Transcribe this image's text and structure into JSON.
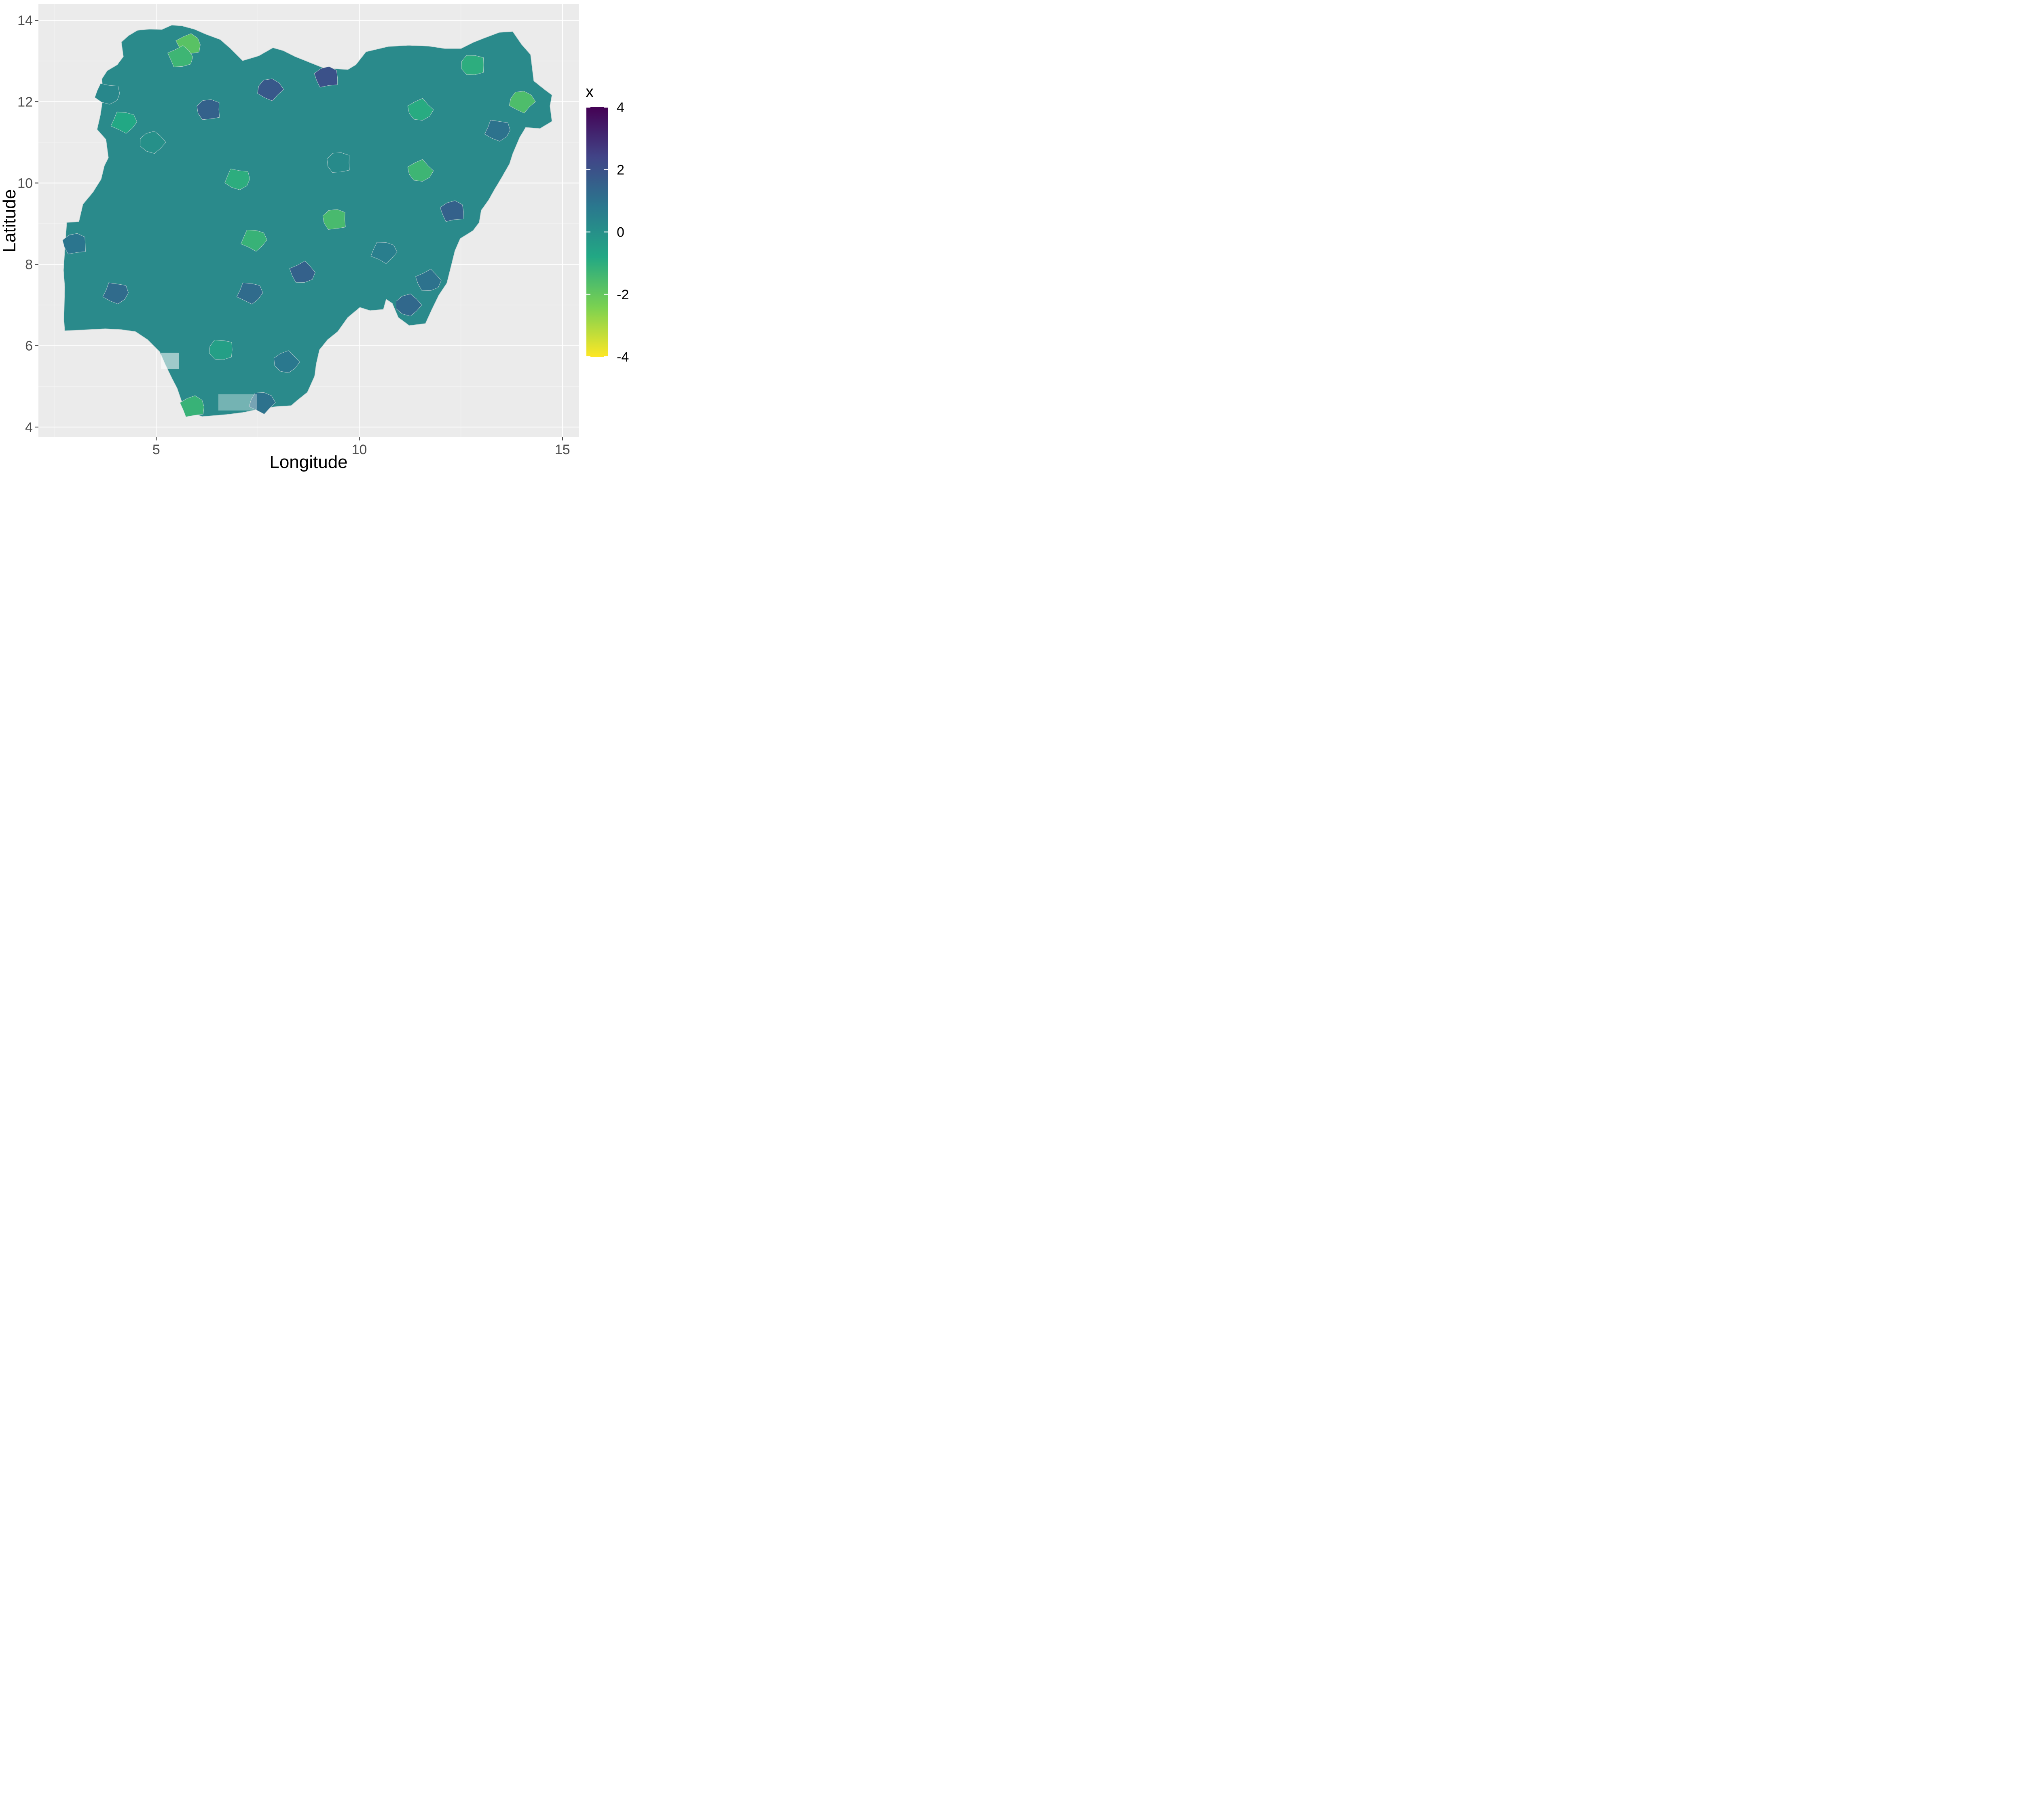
{
  "chart_data": {
    "type": "choropleth",
    "region": "Nigeria",
    "xlabel": "Longitude",
    "ylabel": "Latitude",
    "xlim": [
      2.1,
      15.4
    ],
    "ylim": [
      3.75,
      14.4
    ],
    "x_ticks": [
      5,
      10,
      15
    ],
    "y_ticks": [
      4,
      6,
      8,
      10,
      12,
      14
    ],
    "grid": true,
    "legend": {
      "title": "x",
      "position": "right",
      "min": -4,
      "max": 4,
      "ticks": [
        4,
        2,
        0,
        -2,
        -4
      ],
      "colormap": [
        "#fde725",
        "#7ad151",
        "#22a884",
        "#2a788e",
        "#414487",
        "#440154"
      ]
    },
    "regions": [
      {
        "lon": 4.2,
        "lat": 11.5,
        "value": -0.8
      },
      {
        "lon": 5.8,
        "lat": 13.4,
        "value": -1.8
      },
      {
        "lon": 5.6,
        "lat": 13.1,
        "value": -1.3
      },
      {
        "lon": 7.0,
        "lat": 10.1,
        "value": -1.0
      },
      {
        "lon": 7.4,
        "lat": 8.6,
        "value": -1.2
      },
      {
        "lon": 8.6,
        "lat": 7.8,
        "value": 1.5
      },
      {
        "lon": 6.3,
        "lat": 11.8,
        "value": 1.5
      },
      {
        "lon": 7.8,
        "lat": 12.3,
        "value": 1.8
      },
      {
        "lon": 9.2,
        "lat": 12.6,
        "value": 2.0
      },
      {
        "lon": 11.5,
        "lat": 11.8,
        "value": -0.9
      },
      {
        "lon": 12.8,
        "lat": 12.9,
        "value": -1.0
      },
      {
        "lon": 14.0,
        "lat": 12.0,
        "value": -1.6
      },
      {
        "lon": 11.2,
        "lat": 7.0,
        "value": 1.3
      },
      {
        "lon": 11.7,
        "lat": 7.6,
        "value": 1.0
      },
      {
        "lon": 12.3,
        "lat": 9.3,
        "value": 1.5
      },
      {
        "lon": 13.4,
        "lat": 11.3,
        "value": 1.0
      },
      {
        "lon": 9.4,
        "lat": 9.1,
        "value": -1.5
      },
      {
        "lon": 11.5,
        "lat": 10.3,
        "value": -1.3
      },
      {
        "lon": 3.0,
        "lat": 8.5,
        "value": 0.9
      },
      {
        "lon": 4.0,
        "lat": 7.3,
        "value": 1.2
      },
      {
        "lon": 5.9,
        "lat": 4.5,
        "value": -1.2
      },
      {
        "lon": 7.6,
        "lat": 4.6,
        "value": 1.0
      },
      {
        "lon": 8.2,
        "lat": 5.6,
        "value": 0.8
      },
      {
        "lon": 6.6,
        "lat": 5.9,
        "value": -0.5
      },
      {
        "lon": 7.3,
        "lat": 7.3,
        "value": 1.2
      },
      {
        "lon": 9.5,
        "lat": 10.5,
        "value": 0.2
      },
      {
        "lon": 10.6,
        "lat": 8.3,
        "value": 0.6
      },
      {
        "lon": 3.8,
        "lat": 12.2,
        "value": 0.3
      },
      {
        "lon": 4.9,
        "lat": 11.0,
        "value": 0.0
      }
    ]
  }
}
